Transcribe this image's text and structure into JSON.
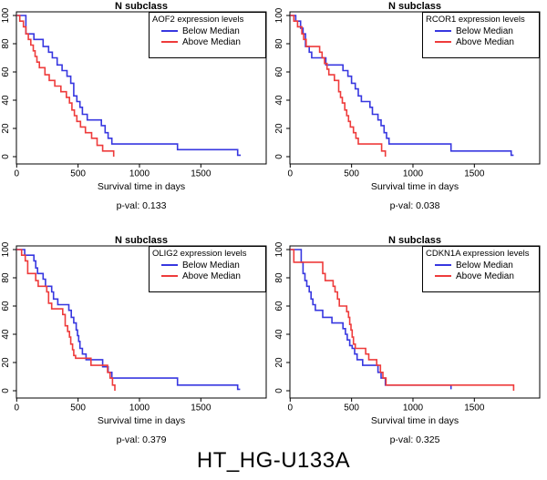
{
  "footer": {
    "label": "HT_HG-U133A"
  },
  "colors": {
    "below_median": "#3737e0",
    "above_median": "#ee3b3b",
    "axis": "#000000",
    "background": "#ffffff"
  },
  "chart_data": [
    {
      "type": "line",
      "kind": "kaplan-meier-step",
      "gene": "AOF2",
      "title": "N subclass",
      "legend_title": "AOF2 expression levels",
      "legend": [
        "Below Median",
        "Above Median"
      ],
      "legend_position": "top-right",
      "xlabel": "Survival time in days",
      "ylabel": "",
      "pval": 0.133,
      "pval_label": "p-val: 0.133",
      "xticks": [
        0,
        500,
        1000,
        1500
      ],
      "yticks": [
        0,
        20,
        40,
        60,
        80,
        100
      ],
      "xlim": [
        0,
        2030
      ],
      "ylim": [
        0,
        100
      ],
      "grid": false,
      "series": [
        {
          "name": "Below Median",
          "color_key": "below_median",
          "points": [
            [
              0,
              100
            ],
            [
              75,
              87
            ],
            [
              140,
              83
            ],
            [
              215,
              78
            ],
            [
              260,
              74
            ],
            [
              290,
              70
            ],
            [
              330,
              65
            ],
            [
              370,
              61
            ],
            [
              410,
              57
            ],
            [
              440,
              52
            ],
            [
              465,
              43
            ],
            [
              490,
              39
            ],
            [
              515,
              35
            ],
            [
              535,
              30
            ],
            [
              575,
              26
            ],
            [
              690,
              22
            ],
            [
              720,
              17
            ],
            [
              745,
              13
            ],
            [
              775,
              9
            ],
            [
              1310,
              5
            ],
            [
              1800,
              1
            ],
            [
              1825,
              1
            ]
          ]
        },
        {
          "name": "Above Median",
          "color_key": "above_median",
          "points": [
            [
              0,
              100
            ],
            [
              25,
              96
            ],
            [
              55,
              92
            ],
            [
              75,
              87
            ],
            [
              95,
              83
            ],
            [
              115,
              79
            ],
            [
              135,
              75
            ],
            [
              150,
              71
            ],
            [
              165,
              67
            ],
            [
              185,
              63
            ],
            [
              230,
              58
            ],
            [
              265,
              54
            ],
            [
              310,
              50
            ],
            [
              360,
              46
            ],
            [
              405,
              42
            ],
            [
              430,
              38
            ],
            [
              450,
              33
            ],
            [
              470,
              29
            ],
            [
              490,
              25
            ],
            [
              520,
              21
            ],
            [
              560,
              17
            ],
            [
              610,
              13
            ],
            [
              655,
              8
            ],
            [
              700,
              4
            ],
            [
              790,
              0
            ]
          ]
        }
      ]
    },
    {
      "type": "line",
      "kind": "kaplan-meier-step",
      "gene": "RCOR1",
      "title": "N subclass",
      "legend_title": "RCOR1 expression levels",
      "legend": [
        "Below Median",
        "Above Median"
      ],
      "legend_position": "top-right",
      "xlabel": "Survival time in days",
      "ylabel": "",
      "pval": 0.038,
      "pval_label": "p-val: 0.038",
      "xticks": [
        0,
        500,
        1000,
        1500
      ],
      "yticks": [
        0,
        20,
        40,
        60,
        80,
        100
      ],
      "xlim": [
        0,
        2030
      ],
      "ylim": [
        0,
        100
      ],
      "grid": false,
      "series": [
        {
          "name": "Below Median",
          "color_key": "below_median",
          "points": [
            [
              0,
              100
            ],
            [
              45,
              96
            ],
            [
              85,
              91
            ],
            [
              105,
              87
            ],
            [
              125,
              78
            ],
            [
              155,
              74
            ],
            [
              175,
              70
            ],
            [
              290,
              65
            ],
            [
              430,
              61
            ],
            [
              470,
              57
            ],
            [
              500,
              52
            ],
            [
              530,
              48
            ],
            [
              555,
              43
            ],
            [
              580,
              39
            ],
            [
              650,
              35
            ],
            [
              670,
              30
            ],
            [
              715,
              26
            ],
            [
              740,
              22
            ],
            [
              765,
              17
            ],
            [
              785,
              13
            ],
            [
              805,
              9
            ],
            [
              1310,
              4
            ],
            [
              1800,
              1
            ],
            [
              1820,
              1
            ]
          ]
        },
        {
          "name": "Above Median",
          "color_key": "above_median",
          "points": [
            [
              0,
              100
            ],
            [
              30,
              96
            ],
            [
              60,
              92
            ],
            [
              95,
              87
            ],
            [
              110,
              83
            ],
            [
              130,
              78
            ],
            [
              240,
              74
            ],
            [
              260,
              70
            ],
            [
              280,
              66
            ],
            [
              300,
              62
            ],
            [
              315,
              58
            ],
            [
              360,
              54
            ],
            [
              395,
              46
            ],
            [
              410,
              42
            ],
            [
              425,
              38
            ],
            [
              445,
              33
            ],
            [
              460,
              29
            ],
            [
              475,
              25
            ],
            [
              490,
              21
            ],
            [
              515,
              17
            ],
            [
              535,
              13
            ],
            [
              555,
              9
            ],
            [
              745,
              4
            ],
            [
              775,
              0
            ]
          ]
        }
      ]
    },
    {
      "type": "line",
      "kind": "kaplan-meier-step",
      "gene": "OLIG2",
      "title": "N subclass",
      "legend_title": "OLIG2 expression levels",
      "legend": [
        "Below Median",
        "Above Median"
      ],
      "legend_position": "top-right",
      "xlabel": "Survival time in days",
      "ylabel": "",
      "pval": 0.379,
      "pval_label": "p-val: 0.379",
      "xticks": [
        0,
        500,
        1000,
        1500
      ],
      "yticks": [
        0,
        20,
        40,
        60,
        80,
        100
      ],
      "xlim": [
        0,
        2030
      ],
      "ylim": [
        0,
        100
      ],
      "grid": false,
      "series": [
        {
          "name": "Below Median",
          "color_key": "below_median",
          "points": [
            [
              0,
              100
            ],
            [
              65,
              96
            ],
            [
              140,
              92
            ],
            [
              155,
              87
            ],
            [
              170,
              83
            ],
            [
              215,
              79
            ],
            [
              235,
              74
            ],
            [
              285,
              70
            ],
            [
              300,
              65
            ],
            [
              335,
              61
            ],
            [
              425,
              57
            ],
            [
              445,
              52
            ],
            [
              465,
              48
            ],
            [
              485,
              43
            ],
            [
              495,
              39
            ],
            [
              505,
              35
            ],
            [
              515,
              30
            ],
            [
              535,
              26
            ],
            [
              565,
              22
            ],
            [
              700,
              17
            ],
            [
              745,
              13
            ],
            [
              775,
              9
            ],
            [
              1310,
              4
            ],
            [
              1800,
              1
            ],
            [
              1820,
              1
            ]
          ]
        },
        {
          "name": "Above Median",
          "color_key": "above_median",
          "points": [
            [
              0,
              100
            ],
            [
              40,
              96
            ],
            [
              70,
              92
            ],
            [
              90,
              83
            ],
            [
              155,
              78
            ],
            [
              175,
              74
            ],
            [
              245,
              70
            ],
            [
              260,
              62
            ],
            [
              285,
              58
            ],
            [
              375,
              54
            ],
            [
              395,
              46
            ],
            [
              415,
              42
            ],
            [
              430,
              38
            ],
            [
              440,
              33
            ],
            [
              455,
              29
            ],
            [
              465,
              25
            ],
            [
              480,
              23
            ],
            [
              605,
              18
            ],
            [
              740,
              13
            ],
            [
              760,
              9
            ],
            [
              780,
              4
            ],
            [
              800,
              0
            ]
          ]
        }
      ]
    },
    {
      "type": "line",
      "kind": "kaplan-meier-step",
      "gene": "CDKN1A",
      "title": "N subclass",
      "legend_title": "CDKN1A expression levels",
      "legend": [
        "Below Median",
        "Above Median"
      ],
      "legend_position": "top-right",
      "xlabel": "Survival time in days",
      "ylabel": "",
      "pval": 0.325,
      "pval_label": "p-val: 0.325",
      "xticks": [
        0,
        500,
        1000,
        1500
      ],
      "yticks": [
        0,
        20,
        40,
        60,
        80,
        100
      ],
      "xlim": [
        0,
        2030
      ],
      "ylim": [
        0,
        100
      ],
      "grid": false,
      "series": [
        {
          "name": "Below Median",
          "color_key": "below_median",
          "points": [
            [
              0,
              100
            ],
            [
              90,
              91
            ],
            [
              105,
              83
            ],
            [
              120,
              78
            ],
            [
              135,
              74
            ],
            [
              155,
              70
            ],
            [
              170,
              65
            ],
            [
              185,
              61
            ],
            [
              205,
              57
            ],
            [
              265,
              52
            ],
            [
              340,
              48
            ],
            [
              430,
              44
            ],
            [
              450,
              40
            ],
            [
              465,
              36
            ],
            [
              485,
              32
            ],
            [
              505,
              30
            ],
            [
              525,
              26
            ],
            [
              545,
              22
            ],
            [
              590,
              18
            ],
            [
              715,
              13
            ],
            [
              740,
              9
            ],
            [
              775,
              4
            ],
            [
              1310,
              1
            ]
          ]
        },
        {
          "name": "Above Median",
          "color_key": "above_median",
          "points": [
            [
              0,
              100
            ],
            [
              30,
              91
            ],
            [
              265,
              83
            ],
            [
              285,
              78
            ],
            [
              350,
              74
            ],
            [
              365,
              70
            ],
            [
              385,
              65
            ],
            [
              400,
              60
            ],
            [
              460,
              56
            ],
            [
              475,
              52
            ],
            [
              485,
              47
            ],
            [
              495,
              43
            ],
            [
              505,
              38
            ],
            [
              515,
              33
            ],
            [
              530,
              30
            ],
            [
              615,
              26
            ],
            [
              640,
              22
            ],
            [
              705,
              18
            ],
            [
              735,
              13
            ],
            [
              755,
              9
            ],
            [
              780,
              4
            ],
            [
              1815,
              4
            ],
            [
              1820,
              0
            ]
          ]
        }
      ]
    }
  ]
}
